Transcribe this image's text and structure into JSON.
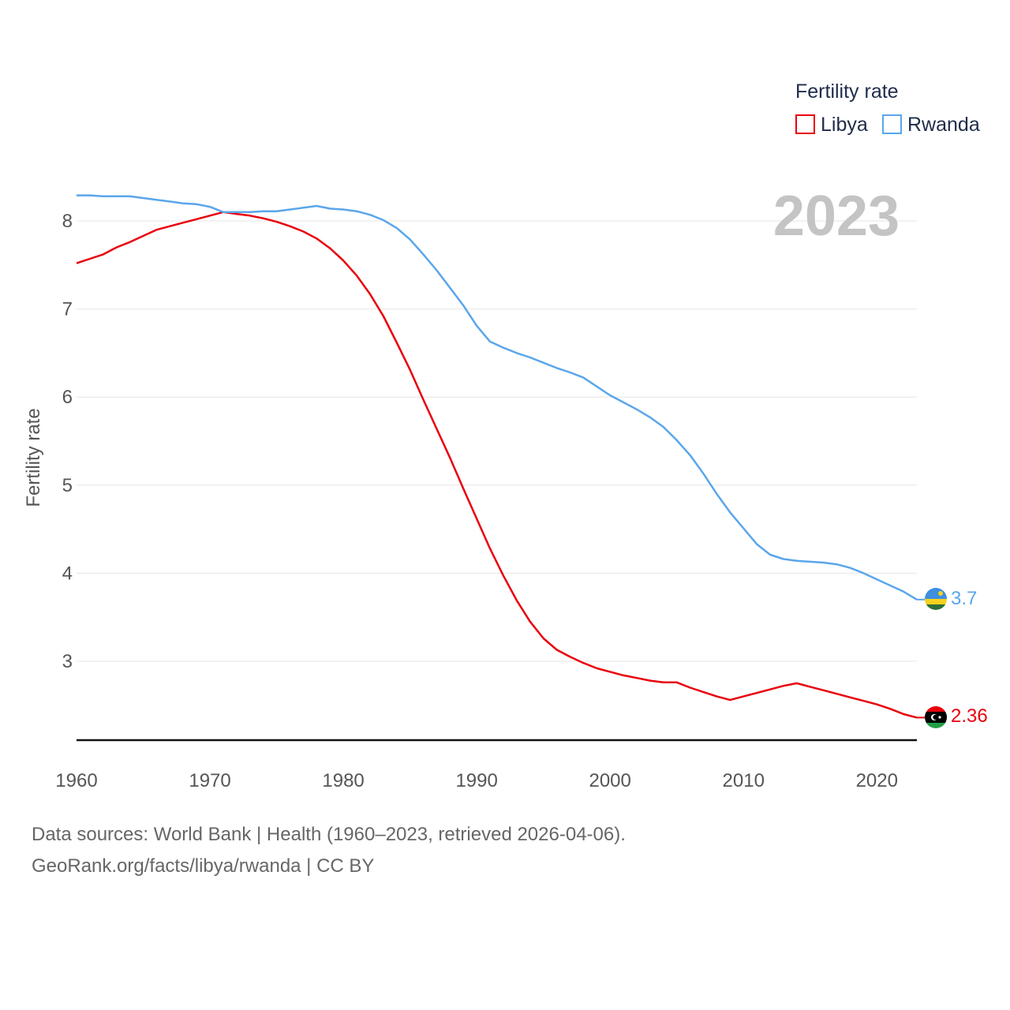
{
  "chart_data": {
    "type": "line",
    "ylabel": "Fertility rate",
    "xlabel": "",
    "xlim": [
      1960,
      2023
    ],
    "ylim": [
      2.1,
      8.5
    ],
    "xticks": [
      1960,
      1970,
      1980,
      1990,
      2000,
      2010,
      2020
    ],
    "yticks": [
      3,
      4,
      5,
      6,
      7,
      8
    ],
    "year_label": "2023",
    "legend": {
      "title": "Fertility rate",
      "position": "top-right"
    },
    "x": [
      1960,
      1961,
      1962,
      1963,
      1964,
      1965,
      1966,
      1967,
      1968,
      1969,
      1970,
      1971,
      1972,
      1973,
      1974,
      1975,
      1976,
      1977,
      1978,
      1979,
      1980,
      1981,
      1982,
      1983,
      1984,
      1985,
      1986,
      1987,
      1988,
      1989,
      1990,
      1991,
      1992,
      1993,
      1994,
      1995,
      1996,
      1997,
      1998,
      1999,
      2000,
      2001,
      2002,
      2003,
      2004,
      2005,
      2006,
      2007,
      2008,
      2009,
      2010,
      2011,
      2012,
      2013,
      2014,
      2015,
      2016,
      2017,
      2018,
      2019,
      2020,
      2021,
      2022,
      2023
    ],
    "series": [
      {
        "name": "Libya",
        "color": "#e8000b",
        "end_label": "2.36",
        "flag": "libya-flag-icon",
        "values": [
          7.52,
          7.57,
          7.62,
          7.7,
          7.76,
          7.83,
          7.9,
          7.94,
          7.98,
          8.02,
          8.06,
          8.1,
          8.08,
          8.06,
          8.03,
          7.99,
          7.94,
          7.88,
          7.8,
          7.69,
          7.55,
          7.38,
          7.17,
          6.92,
          6.62,
          6.31,
          5.97,
          5.64,
          5.31,
          4.96,
          4.62,
          4.28,
          3.97,
          3.69,
          3.45,
          3.26,
          3.13,
          3.05,
          2.98,
          2.92,
          2.88,
          2.84,
          2.81,
          2.78,
          2.76,
          2.76,
          2.7,
          2.65,
          2.6,
          2.56,
          2.6,
          2.64,
          2.68,
          2.72,
          2.75,
          2.71,
          2.67,
          2.63,
          2.59,
          2.55,
          2.51,
          2.46,
          2.4,
          2.36
        ]
      },
      {
        "name": "Rwanda",
        "color": "#5aa6ea",
        "end_label": "3.7",
        "flag": "rwanda-flag-icon",
        "values": [
          8.29,
          8.29,
          8.28,
          8.28,
          8.28,
          8.26,
          8.24,
          8.22,
          8.2,
          8.19,
          8.16,
          8.1,
          8.1,
          8.1,
          8.11,
          8.11,
          8.13,
          8.15,
          8.17,
          8.14,
          8.13,
          8.11,
          8.07,
          8.01,
          7.92,
          7.79,
          7.62,
          7.44,
          7.24,
          7.04,
          6.81,
          6.63,
          6.56,
          6.5,
          6.45,
          6.39,
          6.33,
          6.28,
          6.22,
          6.12,
          6.02,
          5.94,
          5.86,
          5.77,
          5.66,
          5.51,
          5.34,
          5.13,
          4.9,
          4.69,
          4.51,
          4.33,
          4.21,
          4.16,
          4.14,
          4.13,
          4.12,
          4.1,
          4.06,
          4.0,
          3.93,
          3.86,
          3.79,
          3.7
        ]
      }
    ]
  },
  "footer": {
    "sources": "Data sources: World Bank | Health (1960–2023, retrieved 2026-04-06).",
    "credit": "GeoRank.org/facts/libya/rwanda | CC BY"
  }
}
